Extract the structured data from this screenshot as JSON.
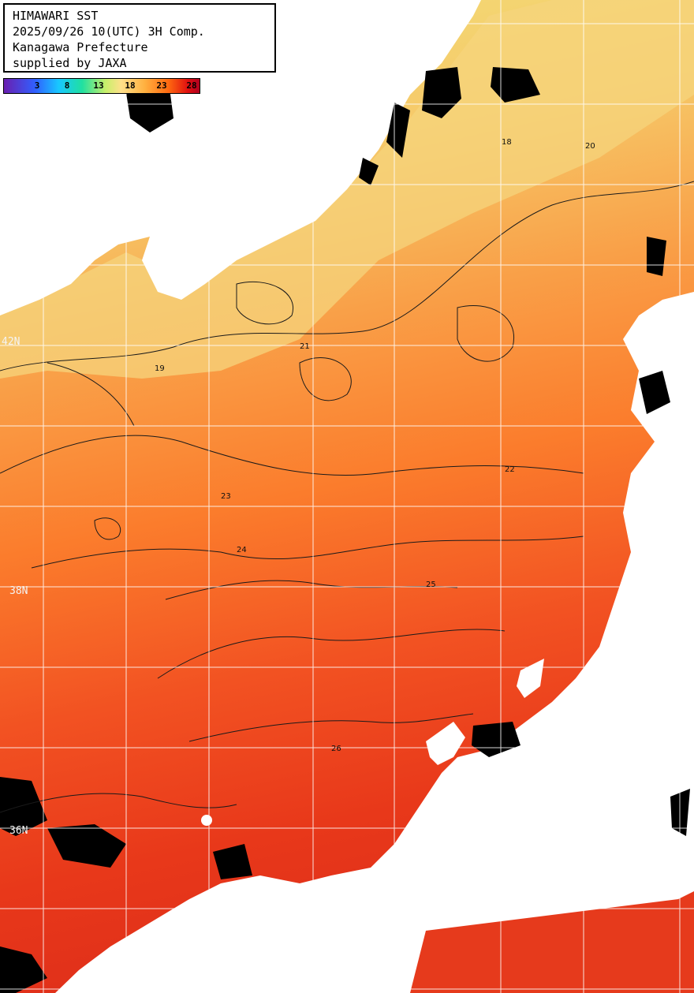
{
  "header": {
    "line1": "HIMAWARI SST",
    "line2": "2025/09/26 10(UTC) 3H Comp.",
    "line3": "Kanagawa Prefecture",
    "line4": "supplied by JAXA"
  },
  "colorbar": {
    "ticks": [
      "3",
      "8",
      "13",
      "18",
      "23",
      "28"
    ]
  },
  "latitude_labels": [
    "42N",
    "38N",
    "36N"
  ],
  "contour_labels": [
    "18",
    "19",
    "20",
    "21",
    "22",
    "23",
    "24",
    "25",
    "26"
  ],
  "colors": {
    "land": "#ffffff",
    "cloud": "#000000",
    "warm_sea": "#e8381a",
    "mid_sea": "#ff8a2a",
    "cool_sea": "#f0d87a",
    "grid": "#ffffff",
    "contour": "#222222"
  }
}
